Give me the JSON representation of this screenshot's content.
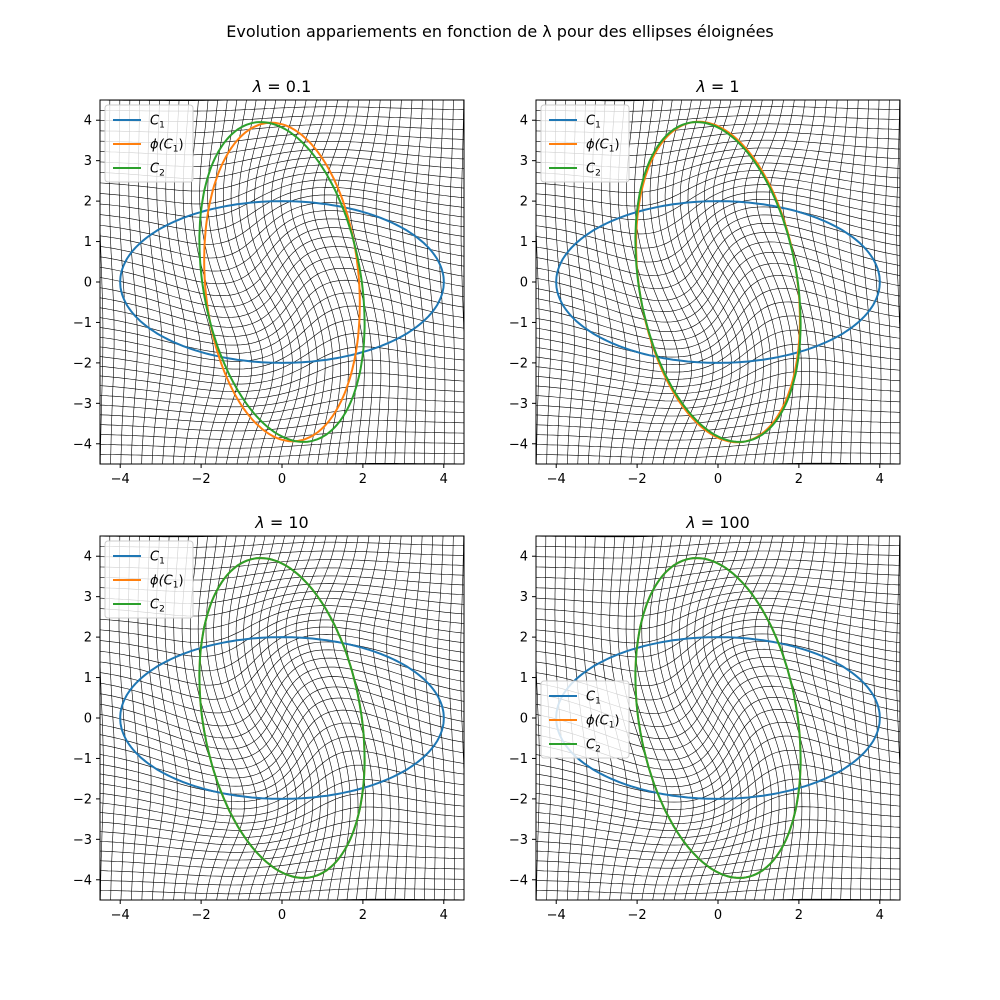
{
  "figure": {
    "suptitle": "Evolution appariements en fonction de λ pour des ellipses éloignées"
  },
  "colors": {
    "C1": "#1f77b4",
    "phiC1": "#ff7f0e",
    "C2": "#2ca02c",
    "grid": "#000000"
  },
  "chart_data": [
    {
      "type": "line",
      "title_prefix": "λ = ",
      "lambda_value": "0.1",
      "xlim": [
        -4.5,
        4.5
      ],
      "ylim": [
        -4.5,
        4.5
      ],
      "xticks": [
        -4,
        -2,
        0,
        2,
        4
      ],
      "yticks": [
        -4,
        -3,
        -2,
        -1,
        0,
        1,
        2,
        3,
        4
      ],
      "legend_position": "upper-left",
      "grid": false,
      "series": [
        {
          "key": "C1",
          "name": "C1",
          "shape": "ellipse",
          "center": [
            0,
            0
          ],
          "semi_axes": [
            4,
            2
          ],
          "rotation_deg": 0
        },
        {
          "key": "phiC1",
          "name": "ϕ(C1)",
          "shape": "ellipse",
          "center": [
            0,
            0
          ],
          "semi_axes": [
            1.9,
            3.95
          ],
          "rotation_deg": 5
        },
        {
          "key": "C2",
          "name": "C2",
          "shape": "ellipse",
          "center": [
            0,
            0
          ],
          "semi_axes": [
            1.95,
            4.0
          ],
          "rotation_deg": 10
        }
      ],
      "deformation_grid": {
        "lines_per_direction": 41,
        "strength": 0.55
      }
    },
    {
      "type": "line",
      "title_prefix": "λ = ",
      "lambda_value": "1",
      "xlim": [
        -4.5,
        4.5
      ],
      "ylim": [
        -4.5,
        4.5
      ],
      "xticks": [
        -4,
        -2,
        0,
        2,
        4
      ],
      "yticks": [
        -4,
        -3,
        -2,
        -1,
        0,
        1,
        2,
        3,
        4
      ],
      "legend_position": "upper-left",
      "grid": false,
      "series": [
        {
          "key": "C1",
          "name": "C1",
          "shape": "ellipse",
          "center": [
            0,
            0
          ],
          "semi_axes": [
            4,
            2
          ],
          "rotation_deg": 0
        },
        {
          "key": "phiC1",
          "name": "ϕ(C1)",
          "shape": "ellipse",
          "center": [
            0,
            0
          ],
          "semi_axes": [
            1.95,
            4.0
          ],
          "rotation_deg": 9
        },
        {
          "key": "C2",
          "name": "C2",
          "shape": "ellipse",
          "center": [
            0,
            0
          ],
          "semi_axes": [
            1.95,
            4.0
          ],
          "rotation_deg": 10
        }
      ],
      "deformation_grid": {
        "lines_per_direction": 41,
        "strength": 0.62
      }
    },
    {
      "type": "line",
      "title_prefix": "λ = ",
      "lambda_value": "10",
      "xlim": [
        -4.5,
        4.5
      ],
      "ylim": [
        -4.5,
        4.5
      ],
      "xticks": [
        -4,
        -2,
        0,
        2,
        4
      ],
      "yticks": [
        -4,
        -3,
        -2,
        -1,
        0,
        1,
        2,
        3,
        4
      ],
      "legend_position": "upper-left",
      "grid": false,
      "series": [
        {
          "key": "C1",
          "name": "C1",
          "shape": "ellipse",
          "center": [
            0,
            0
          ],
          "semi_axes": [
            4,
            2
          ],
          "rotation_deg": 0
        },
        {
          "key": "phiC1",
          "name": "ϕ(C1)",
          "shape": "ellipse",
          "center": [
            0,
            0
          ],
          "semi_axes": [
            1.95,
            4.0
          ],
          "rotation_deg": 10
        },
        {
          "key": "C2",
          "name": "C2",
          "shape": "ellipse",
          "center": [
            0,
            0
          ],
          "semi_axes": [
            1.95,
            4.0
          ],
          "rotation_deg": 10
        }
      ],
      "deformation_grid": {
        "lines_per_direction": 41,
        "strength": 0.64
      }
    },
    {
      "type": "line",
      "title_prefix": "λ = ",
      "lambda_value": "100",
      "xlim": [
        -4.5,
        4.5
      ],
      "ylim": [
        -4.5,
        4.5
      ],
      "xticks": [
        -4,
        -2,
        0,
        2,
        4
      ],
      "yticks": [
        -4,
        -3,
        -2,
        -1,
        0,
        1,
        2,
        3,
        4
      ],
      "legend_position": "center-left",
      "grid": false,
      "series": [
        {
          "key": "C1",
          "name": "C1",
          "shape": "ellipse",
          "center": [
            0,
            0
          ],
          "semi_axes": [
            4,
            2
          ],
          "rotation_deg": 0
        },
        {
          "key": "phiC1",
          "name": "ϕ(C1)",
          "shape": "ellipse",
          "center": [
            0,
            0
          ],
          "semi_axes": [
            1.95,
            4.0
          ],
          "rotation_deg": 10
        },
        {
          "key": "C2",
          "name": "C2",
          "shape": "ellipse",
          "center": [
            0,
            0
          ],
          "semi_axes": [
            1.95,
            4.0
          ],
          "rotation_deg": 10
        }
      ],
      "deformation_grid": {
        "lines_per_direction": 41,
        "strength": 0.65
      }
    }
  ]
}
